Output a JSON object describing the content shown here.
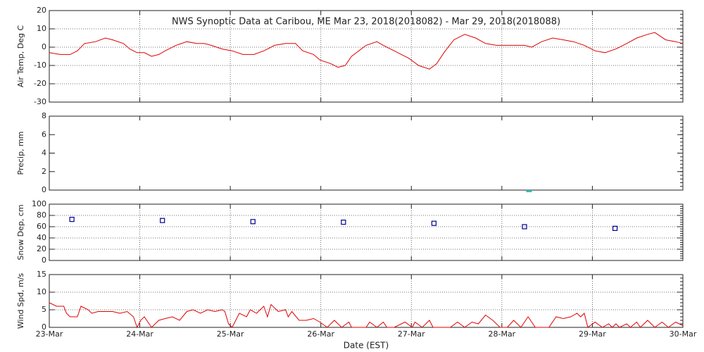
{
  "chart_data": [
    {
      "type": "line",
      "title": "NWS Synoptic Data at Caribou, ME   Mar 23, 2018(2018082) - Mar 29, 2018(2018088)",
      "y_label": "Air Temp, Deg C",
      "xlim": [
        0,
        7
      ],
      "ylim": [
        -30,
        20
      ],
      "yticks": [
        -30,
        -20,
        -10,
        0,
        10,
        20
      ],
      "grid": true,
      "series": [
        {
          "color": "#e00000",
          "x": [
            0,
            0.12,
            0.23,
            0.31,
            0.39,
            0.51,
            0.62,
            0.7,
            0.82,
            0.89,
            0.97,
            1.05,
            1.13,
            1.21,
            1.28,
            1.4,
            1.52,
            1.63,
            1.71,
            1.79,
            1.91,
            2.02,
            2.14,
            2.26,
            2.37,
            2.49,
            2.61,
            2.72,
            2.8,
            2.92,
            2.99,
            3.11,
            3.19,
            3.27,
            3.34,
            3.42,
            3.5,
            3.62,
            3.69,
            3.81,
            3.89,
            3.97,
            4.08,
            4.2,
            4.28,
            4.36,
            4.47,
            4.59,
            4.71,
            4.82,
            4.94,
            5.06,
            5.17,
            5.25,
            5.33,
            5.44,
            5.56,
            5.68,
            5.79,
            5.91,
            6.03,
            6.14,
            6.26,
            6.38,
            6.49,
            6.61,
            6.69,
            6.81,
            6.92,
            7.0
          ],
          "values": [
            -3,
            -4,
            -4,
            -2,
            2,
            3,
            5,
            4,
            2,
            -1,
            -3,
            -3,
            -5,
            -4,
            -2,
            1,
            3,
            2,
            2,
            1,
            -1,
            -2,
            -4,
            -4,
            -2,
            1,
            2,
            2,
            -2,
            -4,
            -7,
            -9,
            -11,
            -10,
            -5,
            -2,
            1,
            3,
            1,
            -2,
            -4,
            -6,
            -10,
            -12,
            -9,
            -3,
            4,
            7,
            5,
            2,
            1,
            1,
            1,
            1,
            0,
            3,
            5,
            4,
            3,
            1,
            -2,
            -3,
            -1,
            2,
            5,
            7,
            8,
            4,
            3,
            2
          ]
        }
      ]
    },
    {
      "type": "scatter",
      "y_label": "Precip, mm",
      "xlim": [
        0,
        7
      ],
      "ylim": [
        0,
        8
      ],
      "yticks": [
        0,
        2,
        4,
        6,
        8
      ],
      "grid": false,
      "series": [
        {
          "color": "#00c8c8",
          "marker": "dash",
          "x": [
            5.3
          ],
          "values": [
            0
          ]
        }
      ]
    },
    {
      "type": "scatter",
      "y_label": "Snow Dep, cm",
      "xlim": [
        0,
        7
      ],
      "ylim": [
        0,
        100
      ],
      "yticks": [
        0,
        20,
        40,
        60,
        80,
        100
      ],
      "grid": true,
      "series": [
        {
          "color": "#000090",
          "marker": "square",
          "x": [
            0.25,
            1.25,
            2.25,
            3.25,
            4.25,
            5.25,
            6.25
          ],
          "values": [
            73,
            71,
            69,
            68,
            66,
            60,
            57
          ]
        }
      ]
    },
    {
      "type": "line",
      "y_label": "Wind Spd, m/s",
      "x_label": "Date (EST)",
      "xlim": [
        0,
        7
      ],
      "ylim": [
        0,
        15
      ],
      "yticks": [
        0,
        5,
        10,
        15
      ],
      "grid": true,
      "xticks": [
        {
          "value": 0,
          "label": "23-Mar"
        },
        {
          "value": 1,
          "label": "24-Mar"
        },
        {
          "value": 2,
          "label": "25-Mar"
        },
        {
          "value": 3,
          "label": "26-Mar"
        },
        {
          "value": 4,
          "label": "27-Mar"
        },
        {
          "value": 5,
          "label": "28-Mar"
        },
        {
          "value": 6,
          "label": "29-Mar"
        },
        {
          "value": 7,
          "label": "30-Mar"
        }
      ],
      "series": [
        {
          "color": "#e00000",
          "x": [
            0,
            0.08,
            0.16,
            0.19,
            0.23,
            0.31,
            0.35,
            0.43,
            0.47,
            0.54,
            0.62,
            0.7,
            0.78,
            0.86,
            0.93,
            0.97,
            1.01,
            1.05,
            1.09,
            1.13,
            1.21,
            1.28,
            1.36,
            1.44,
            1.52,
            1.59,
            1.67,
            1.75,
            1.83,
            1.91,
            1.94,
            1.98,
            2.02,
            2.1,
            2.18,
            2.22,
            2.29,
            2.37,
            2.41,
            2.45,
            2.53,
            2.61,
            2.64,
            2.68,
            2.76,
            2.84,
            2.92,
            2.99,
            3.07,
            3.15,
            3.23,
            3.31,
            3.34,
            3.5,
            3.54,
            3.62,
            3.69,
            3.73,
            3.81,
            3.93,
            4.01,
            4.04,
            4.12,
            4.2,
            4.24,
            4.43,
            4.51,
            4.59,
            4.67,
            4.74,
            4.82,
            4.9,
            4.98,
            5.06,
            5.13,
            5.21,
            5.29,
            5.37,
            5.52,
            5.6,
            5.68,
            5.76,
            5.83,
            5.87,
            5.91,
            5.95,
            6.03,
            6.11,
            6.18,
            6.22,
            6.26,
            6.3,
            6.38,
            6.42,
            6.49,
            6.53,
            6.61,
            6.69,
            6.77,
            6.84,
            6.92,
            7.0
          ],
          "values": [
            7,
            6,
            6,
            4,
            3,
            3,
            6,
            5,
            4,
            4.5,
            4.5,
            4.5,
            4,
            4.5,
            3,
            0,
            2,
            3,
            1.5,
            0,
            2,
            2.5,
            3,
            2,
            4.5,
            5,
            4,
            5,
            4.5,
            5,
            4.5,
            1,
            0,
            4,
            3,
            5,
            4,
            6,
            3,
            6.5,
            4.5,
            5,
            3,
            4.5,
            2,
            2,
            2.5,
            1.5,
            0,
            2,
            0,
            1.5,
            0,
            0,
            1.5,
            0,
            1.5,
            0,
            0,
            1.5,
            0,
            1.5,
            0,
            2,
            0,
            0,
            1.5,
            0,
            1.5,
            1,
            3.5,
            2,
            0,
            0,
            2,
            0,
            3,
            0,
            0,
            3,
            2.5,
            3,
            4,
            3,
            4,
            0,
            1.5,
            0,
            1,
            0,
            1,
            0,
            1,
            0,
            1.5,
            0,
            2,
            0,
            1.5,
            0,
            1.5,
            0.5
          ]
        }
      ]
    }
  ]
}
